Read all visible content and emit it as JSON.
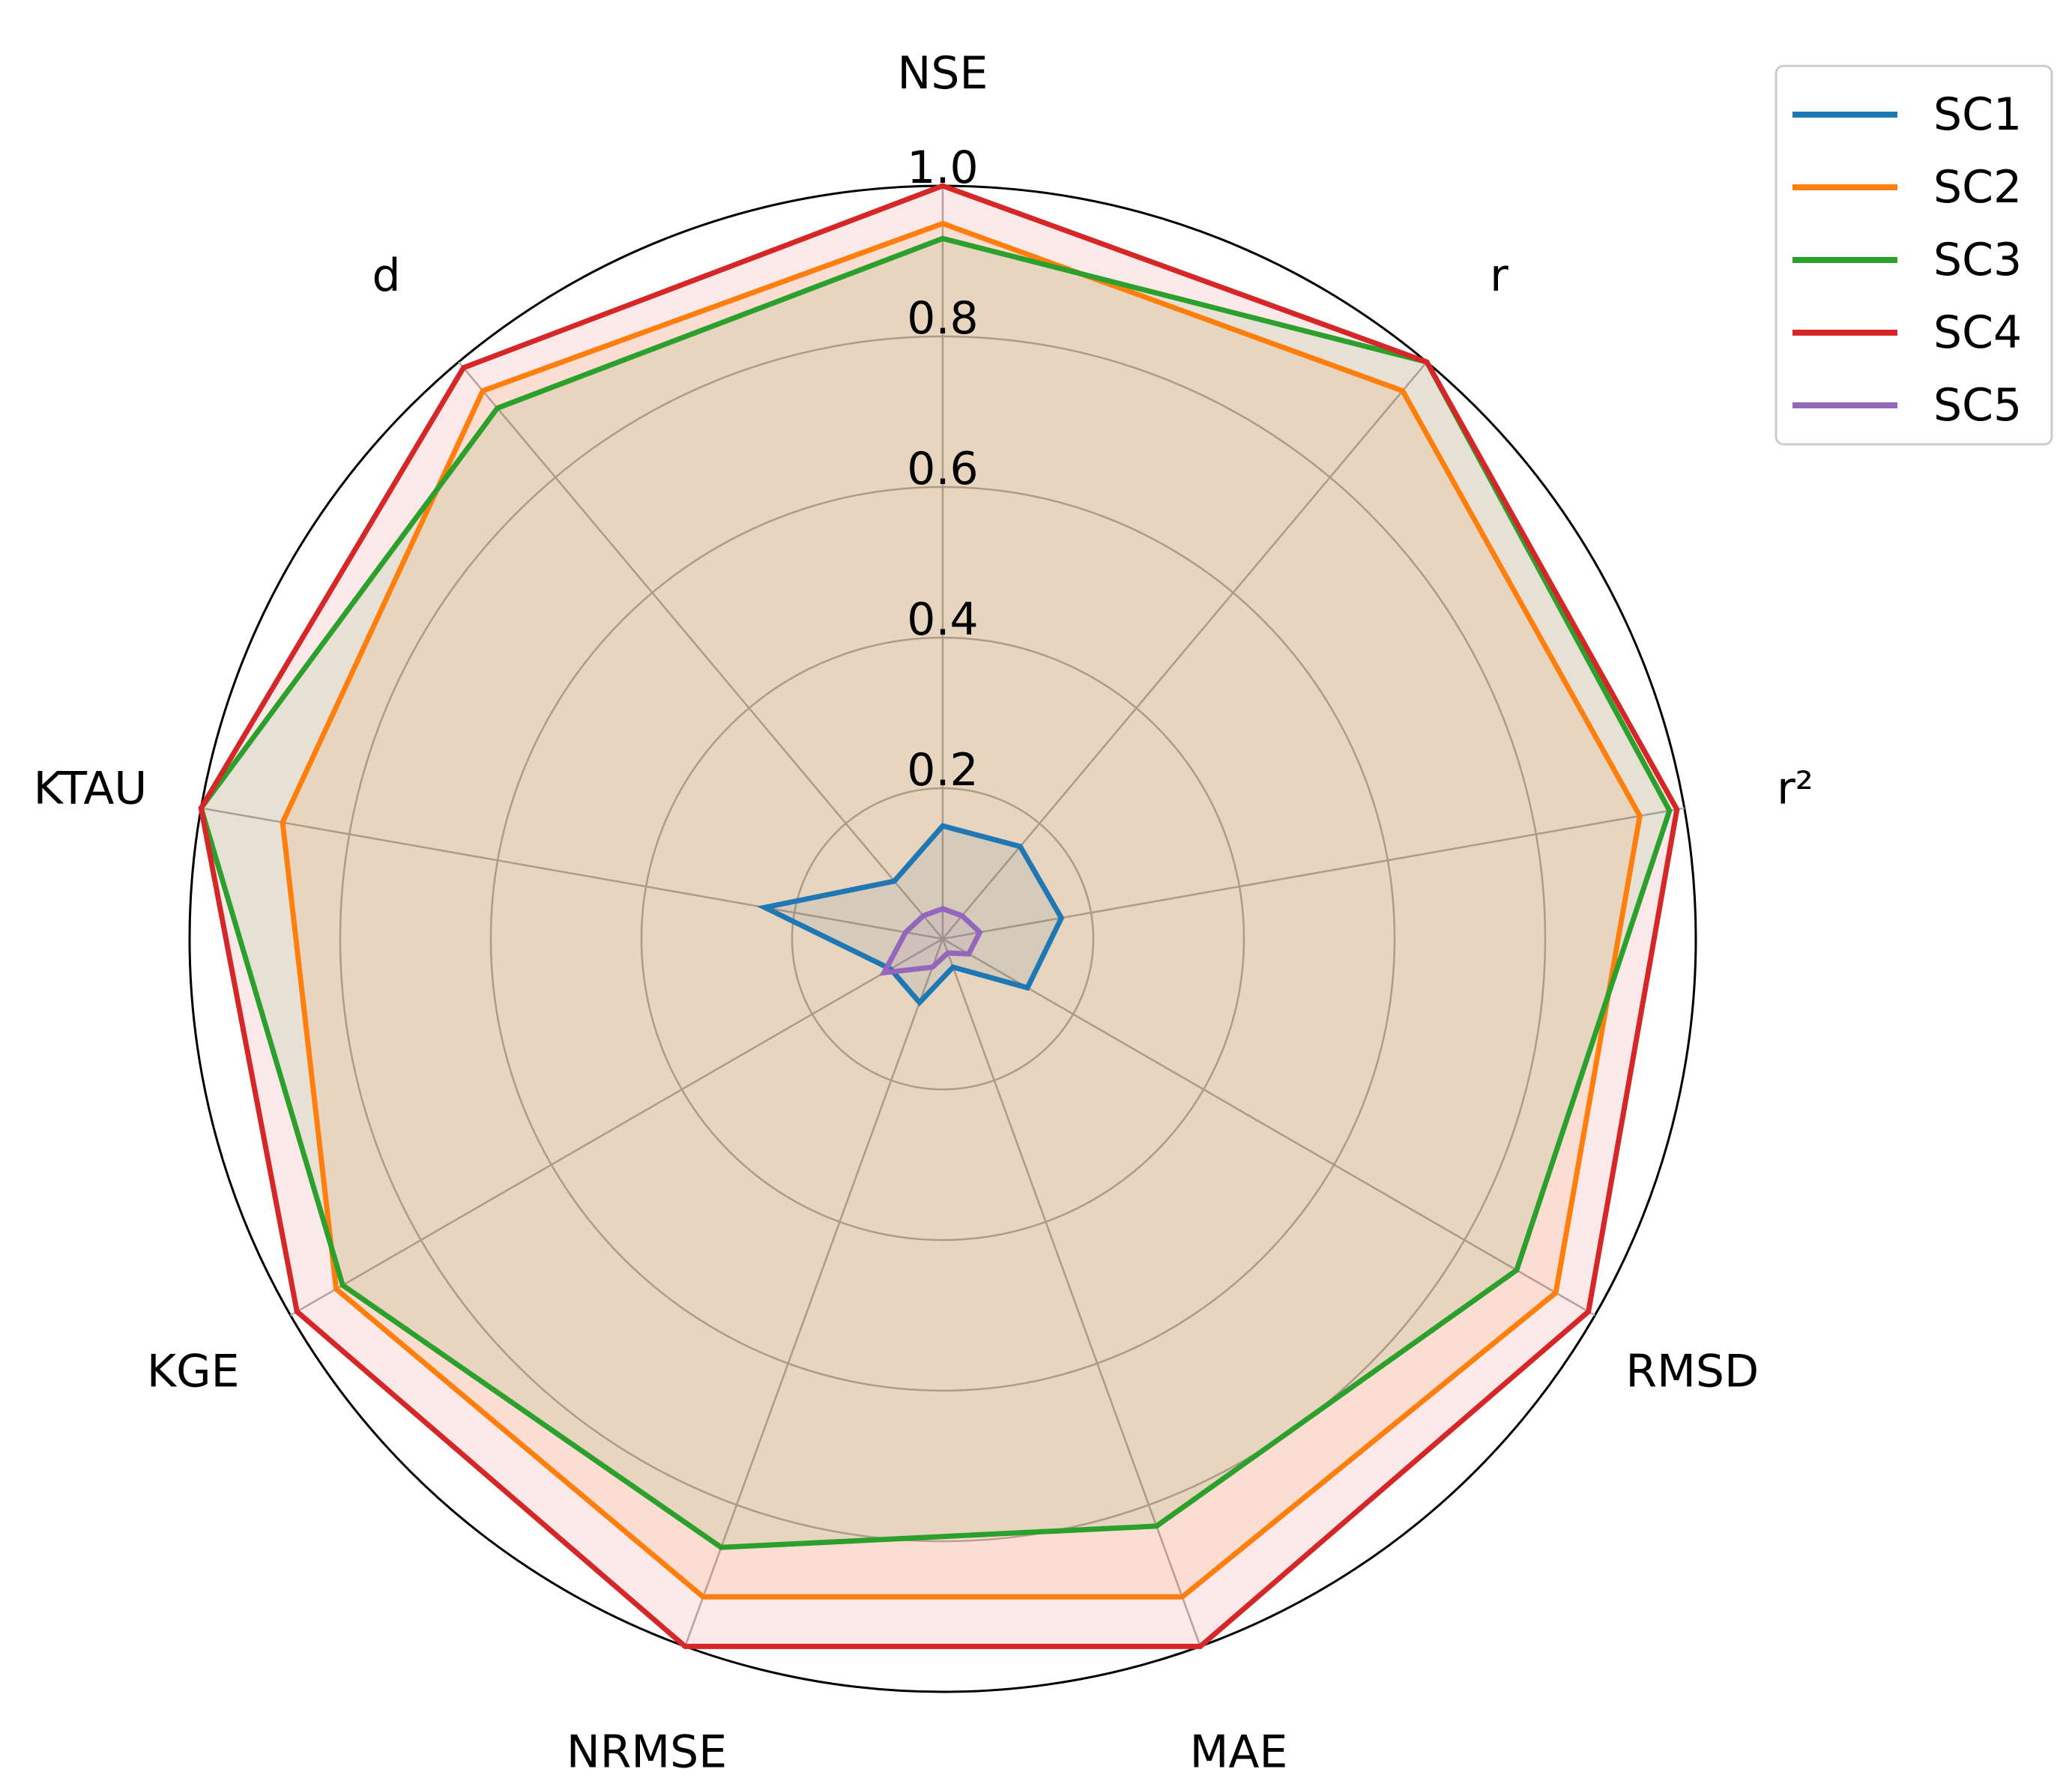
{
  "chart_data": {
    "type": "radar",
    "axes": [
      "NSE",
      "r",
      "r²",
      "RMSD",
      "MAE",
      "NRMSE",
      "KGE",
      "KTAU",
      "d"
    ],
    "rlim": [
      0,
      1.0
    ],
    "rticks": [
      0.2,
      0.4,
      0.6,
      0.8,
      1.0
    ],
    "rtick_labels": [
      "0.2",
      "0.4",
      "0.6",
      "0.8",
      "1.0"
    ],
    "grid": true,
    "legend_position": "top-right",
    "series": [
      {
        "name": "SC1",
        "color": "#1f77b4",
        "values": [
          0.15,
          0.16,
          0.16,
          0.13,
          0.04,
          0.09,
          0.08,
          0.24,
          0.1
        ],
        "fill_opacity": 0.1
      },
      {
        "name": "SC2",
        "color": "#ff7f0e",
        "values": [
          0.95,
          0.95,
          0.94,
          0.94,
          0.93,
          0.93,
          0.93,
          0.89,
          0.95
        ],
        "fill_opacity": 0.1
      },
      {
        "name": "SC3",
        "color": "#2ca02c",
        "values": [
          0.93,
          1.0,
          0.98,
          0.88,
          0.83,
          0.86,
          0.92,
          1.0,
          0.92
        ],
        "fill_opacity": 0.1
      },
      {
        "name": "SC4",
        "color": "#d62728",
        "values": [
          1.0,
          1.0,
          0.99,
          0.99,
          1.0,
          1.0,
          0.99,
          1.0,
          0.99
        ],
        "fill_opacity": 0.1
      },
      {
        "name": "SC5",
        "color": "#9467bd",
        "values": [
          0.04,
          0.04,
          0.05,
          0.04,
          0.02,
          0.04,
          0.09,
          0.05,
          0.04
        ],
        "fill_opacity": 0.1
      }
    ]
  }
}
